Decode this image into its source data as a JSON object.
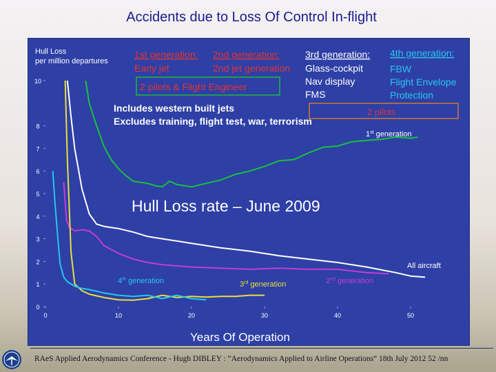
{
  "slide": {
    "title": "Accidents due to Loss Of Control In-flight",
    "footer": "RAeS Applied Aerodynamics Conference  -  Hugh DIBLEY :  “Aerodynamics Applied to Airline Operations”  18th July 2012  52 /nn"
  },
  "colors": {
    "panel": "#2e3fa6",
    "first_gen": "#19c23a",
    "second_gen": "#c63bd8",
    "third_gen": "#e9e03a",
    "fourth_gen": "#28c7ee",
    "all_aircraft": "#ffffff",
    "header_red": "#e23535",
    "header_text": "#ffffff"
  },
  "chart_data": {
    "type": "line",
    "title": "Hull Loss rate – June 2009",
    "xlabel": "Years Of Operation",
    "ylabel": "Hull Loss per million departures",
    "xlim": [
      0,
      55
    ],
    "ylim": [
      0,
      10
    ],
    "x_ticks": [
      0,
      10,
      20,
      30,
      40,
      50
    ],
    "y_ticks": [
      0,
      1,
      2,
      3,
      4,
      5,
      6,
      7,
      8,
      10
    ],
    "grid": false,
    "generations": [
      {
        "heading": "1st generation:",
        "lines": [
          "Early jet"
        ]
      },
      {
        "heading": "2nd generation:",
        "lines": [
          "2nd jet generation"
        ]
      },
      {
        "heading": "3rd generation:",
        "lines": [
          "Glass-cockpit",
          "Nav display",
          "FMS"
        ]
      },
      {
        "heading": "4th generation:",
        "lines": [
          "FBW",
          "Flight Envelope",
          "Protection"
        ]
      }
    ],
    "crew_boxes": [
      "2 pilots & Flight Engineer",
      "2 pilots"
    ],
    "notes": [
      "Includes western built jets",
      "Excludes training, flight test, war, terrorism"
    ],
    "series": [
      {
        "name": "1st generation",
        "color": "#19c23a",
        "x": [
          5.5,
          6,
          7,
          8,
          9,
          10,
          11,
          12,
          13,
          14,
          15,
          16,
          17,
          18,
          20,
          22,
          24,
          26,
          28,
          30,
          32,
          34,
          36,
          38,
          40,
          42,
          44,
          46,
          48,
          50,
          51
        ],
        "y": [
          10,
          9.0,
          8.0,
          7.1,
          6.5,
          6.1,
          5.8,
          5.55,
          5.5,
          5.45,
          5.35,
          5.3,
          5.55,
          5.4,
          5.3,
          5.45,
          5.6,
          5.85,
          6.0,
          6.2,
          6.45,
          6.5,
          6.8,
          7.05,
          7.1,
          7.3,
          7.35,
          7.4,
          7.5,
          7.45,
          7.5
        ]
      },
      {
        "name": "All aircraft",
        "color": "#ffffff",
        "x": [
          3.0,
          3.5,
          4,
          5,
          6,
          7,
          8,
          9,
          10,
          12,
          14,
          16,
          18,
          20,
          24,
          28,
          32,
          36,
          40,
          44,
          48,
          50,
          52
        ],
        "y": [
          10,
          8.4,
          7.0,
          5.2,
          4.1,
          3.65,
          3.55,
          3.5,
          3.45,
          3.3,
          3.1,
          3.0,
          2.9,
          2.8,
          2.6,
          2.45,
          2.25,
          2.1,
          1.95,
          1.75,
          1.5,
          1.35,
          1.3
        ]
      },
      {
        "name": "2nd generation",
        "color": "#c63bd8",
        "x": [
          2.5,
          2.9,
          3.3,
          4,
          5,
          6,
          7,
          8,
          10,
          12,
          14,
          16,
          18,
          20,
          24,
          28,
          32,
          36,
          40,
          44,
          47
        ],
        "y": [
          5.5,
          3.8,
          3.5,
          3.35,
          3.4,
          3.35,
          3.1,
          2.7,
          2.35,
          2.1,
          1.95,
          1.85,
          1.8,
          1.75,
          1.7,
          1.65,
          1.7,
          1.65,
          1.65,
          1.5,
          1.45
        ]
      },
      {
        "name": "3rd generation",
        "color": "#e9e03a",
        "x": [
          2.7,
          3.0,
          3.5,
          4,
          5,
          6,
          8,
          10,
          12,
          14,
          16,
          18,
          20,
          22,
          24,
          26,
          28,
          30
        ],
        "y": [
          10,
          6.5,
          2.4,
          1.0,
          0.7,
          0.55,
          0.4,
          0.3,
          0.28,
          0.35,
          0.5,
          0.4,
          0.45,
          0.42,
          0.45,
          0.45,
          0.5,
          0.5
        ]
      },
      {
        "name": "4th generation",
        "color": "#28c7ee",
        "x": [
          1.0,
          1.3,
          1.7,
          2.0,
          2.5,
          3,
          4,
          5,
          6,
          8,
          10,
          12,
          14,
          16,
          18,
          20,
          22
        ],
        "y": [
          6.0,
          4.6,
          3.0,
          1.9,
          1.3,
          1.1,
          0.9,
          0.8,
          0.75,
          0.6,
          0.5,
          0.45,
          0.5,
          0.35,
          0.5,
          0.35,
          0.3
        ]
      }
    ]
  }
}
